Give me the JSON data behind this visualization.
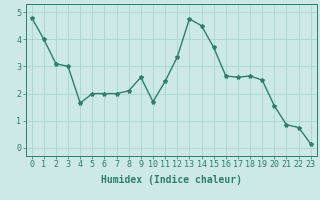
{
  "x": [
    0,
    1,
    2,
    3,
    4,
    5,
    6,
    7,
    8,
    9,
    10,
    11,
    12,
    13,
    14,
    15,
    16,
    17,
    18,
    19,
    20,
    21,
    22,
    23
  ],
  "y": [
    4.8,
    4.0,
    3.1,
    3.0,
    1.65,
    2.0,
    2.0,
    2.0,
    2.1,
    2.6,
    1.7,
    2.45,
    3.35,
    4.75,
    4.5,
    3.7,
    2.65,
    2.6,
    2.65,
    2.5,
    1.55,
    0.85,
    0.75,
    0.15
  ],
  "line_color": "#2e7d6e",
  "marker": "*",
  "marker_size": 3,
  "bg_color": "#cce9e7",
  "grid_color": "#aad4d0",
  "xlabel": "Humidex (Indice chaleur)",
  "ylim": [
    -0.3,
    5.3
  ],
  "xlim": [
    -0.5,
    23.5
  ],
  "yticks": [
    0,
    1,
    2,
    3,
    4,
    5
  ],
  "xticks": [
    0,
    1,
    2,
    3,
    4,
    5,
    6,
    7,
    8,
    9,
    10,
    11,
    12,
    13,
    14,
    15,
    16,
    17,
    18,
    19,
    20,
    21,
    22,
    23
  ],
  "tick_color": "#2e7d6e",
  "tick_fontsize": 6,
  "xlabel_fontsize": 7,
  "line_width": 1.0,
  "spine_color": "#2e7d6e"
}
